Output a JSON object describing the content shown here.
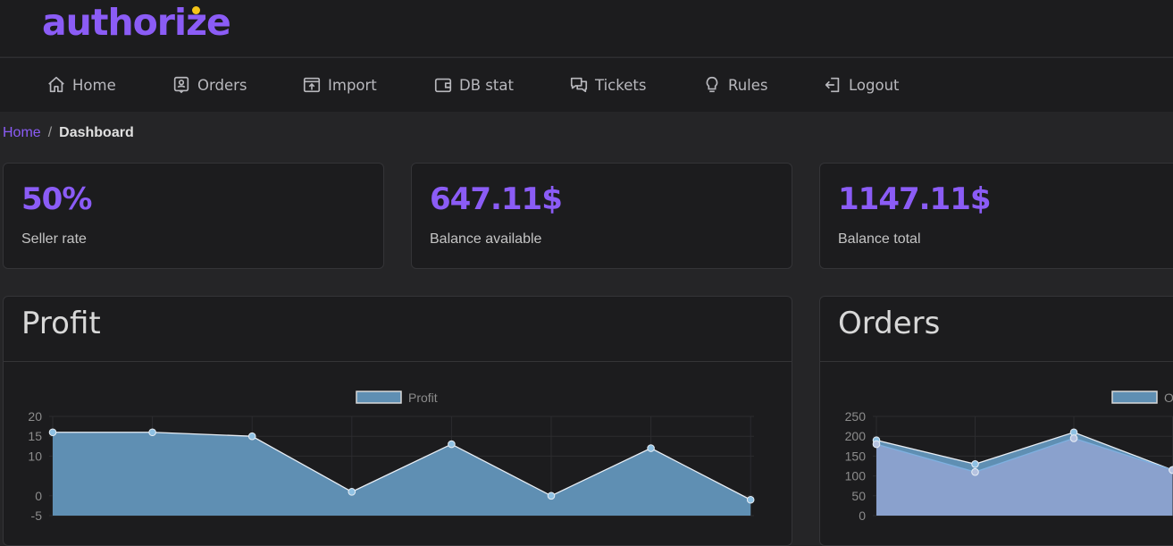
{
  "brand": {
    "name": "authorize",
    "dot_color": "#f5c518",
    "accent": "#8b5cf6"
  },
  "nav": {
    "items": [
      {
        "label": "Home",
        "icon": "home-icon"
      },
      {
        "label": "Orders",
        "icon": "orders-icon"
      },
      {
        "label": "Import",
        "icon": "import-icon"
      },
      {
        "label": "DB stat",
        "icon": "wallet-icon"
      },
      {
        "label": "Tickets",
        "icon": "chat-icon"
      },
      {
        "label": "Rules",
        "icon": "lightbulb-icon"
      },
      {
        "label": "Logout",
        "icon": "logout-icon"
      }
    ]
  },
  "breadcrumb": {
    "home": "Home",
    "separator": "/",
    "current": "Dashboard"
  },
  "stats": [
    {
      "value": "50%",
      "label": "Seller rate"
    },
    {
      "value": "647.11$",
      "label": "Balance available"
    },
    {
      "value": "1147.11$",
      "label": "Balance total"
    }
  ],
  "charts": {
    "profit": {
      "title": "Profit"
    },
    "orders": {
      "title": "Orders"
    }
  },
  "chart_data": [
    {
      "type": "area",
      "title": "Profit",
      "series": [
        {
          "name": "Profit",
          "values": [
            16,
            16,
            15,
            1,
            13,
            0,
            12,
            -1
          ],
          "color": "#5f8fb3"
        }
      ],
      "yticks": [
        20,
        15,
        10,
        0,
        -5
      ],
      "ylim": [
        -5,
        20
      ],
      "grid": true,
      "legend": "top-center"
    },
    {
      "type": "area",
      "title": "Orders",
      "series": [
        {
          "name": "O",
          "values": [
            190,
            130,
            210,
            115
          ],
          "color": "#5f8fb3"
        },
        {
          "values": [
            180,
            110,
            195,
            115
          ],
          "color": "#8fa3cf"
        }
      ],
      "yticks": [
        250,
        200,
        150,
        100,
        50,
        0
      ],
      "ylim": [
        0,
        250
      ],
      "grid": true,
      "legend": "top-right"
    }
  ]
}
